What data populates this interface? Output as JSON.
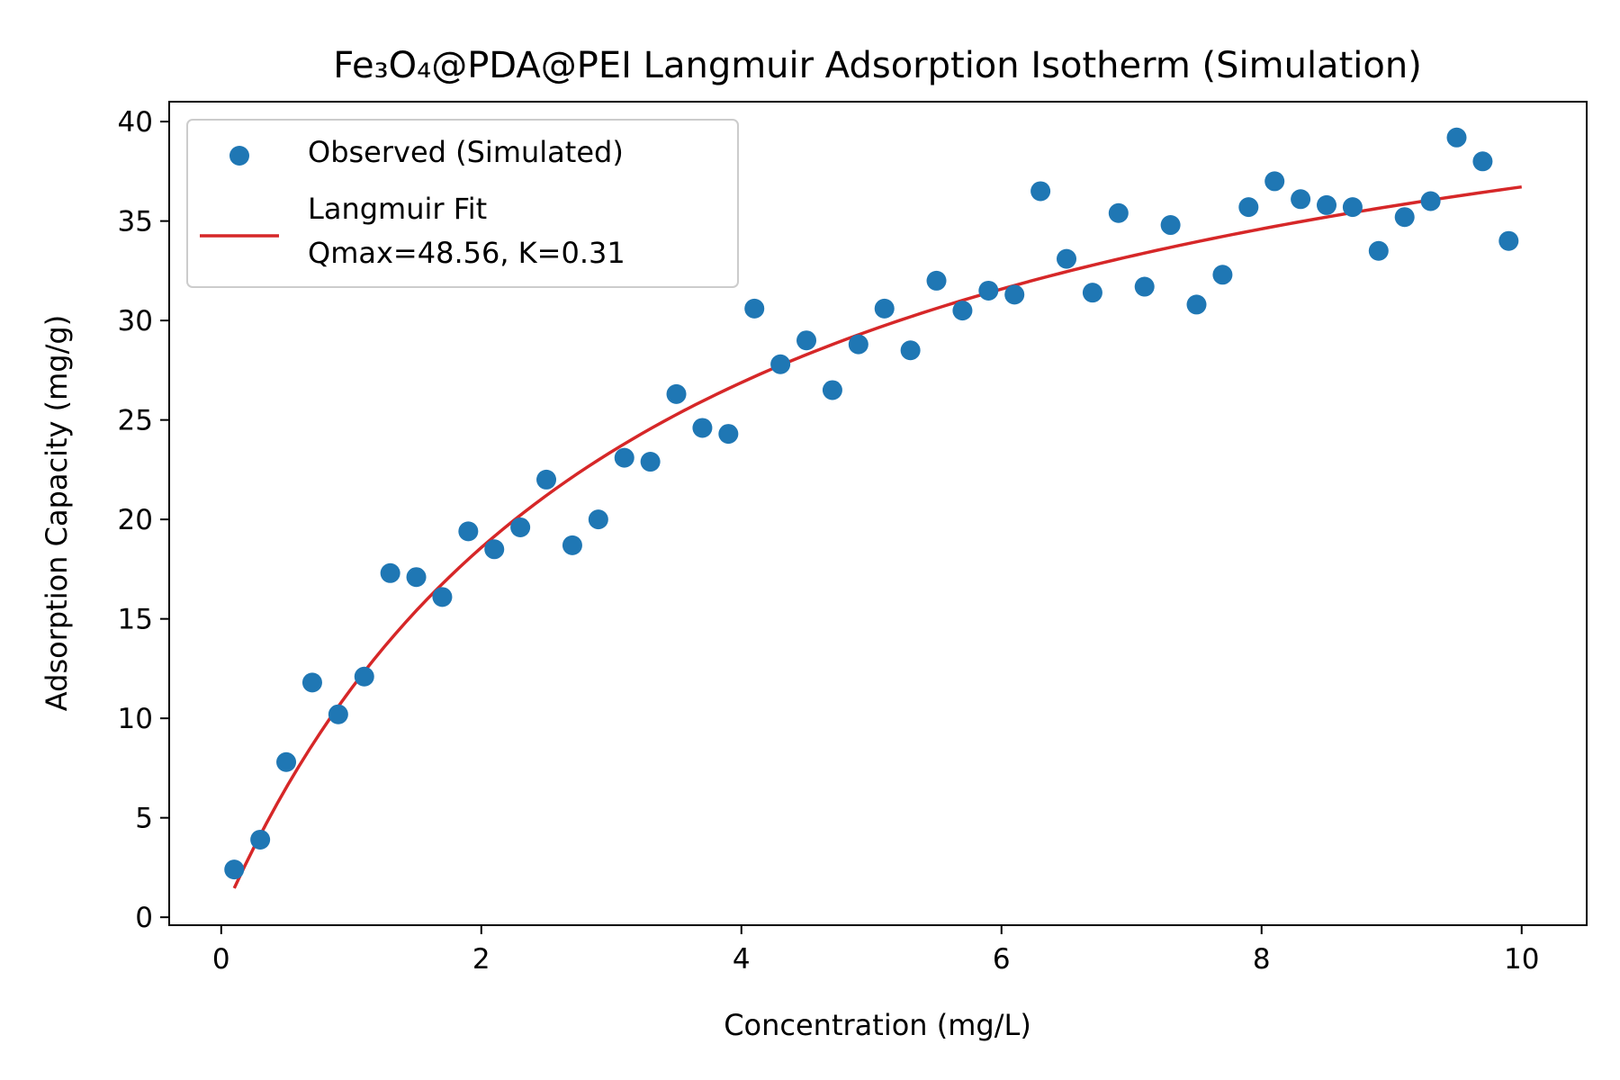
{
  "chart_data": {
    "type": "scatter",
    "title": "Fe₃O₄@PDA@PEI Langmuir Adsorption Isotherm (Simulation)",
    "xlabel": "Concentration (mg/L)",
    "ylabel": "Adsorption Capacity (mg/g)",
    "xlim": [
      -0.4,
      10.5
    ],
    "ylim": [
      -0.4,
      41.0
    ],
    "xticks": [
      0,
      2,
      4,
      6,
      8,
      10
    ],
    "yticks": [
      0,
      5,
      10,
      15,
      20,
      25,
      30,
      35,
      40
    ],
    "grid": false,
    "legend_position": "top-left",
    "colors": {
      "points": "#1f77b4",
      "fit": "#d62728"
    },
    "series": [
      {
        "name": "Observed (Simulated)",
        "kind": "scatter",
        "x": [
          0.1,
          0.3,
          0.5,
          0.7,
          0.9,
          1.1,
          1.3,
          1.5,
          1.7,
          1.9,
          2.1,
          2.3,
          2.5,
          2.7,
          2.9,
          3.1,
          3.3,
          3.5,
          3.7,
          3.9,
          4.1,
          4.3,
          4.5,
          4.7,
          4.9,
          5.1,
          5.3,
          5.5,
          5.7,
          5.9,
          6.1,
          6.3,
          6.5,
          6.7,
          6.9,
          7.1,
          7.3,
          7.5,
          7.7,
          7.9,
          8.1,
          8.3,
          8.5,
          8.7,
          8.9,
          9.1,
          9.3,
          9.5,
          9.7,
          9.9
        ],
        "y": [
          2.4,
          3.9,
          7.8,
          11.8,
          10.2,
          12.1,
          17.3,
          17.1,
          16.1,
          19.4,
          18.5,
          19.6,
          22.0,
          18.7,
          20.0,
          23.1,
          22.9,
          26.3,
          24.6,
          24.3,
          30.6,
          27.8,
          29.0,
          26.5,
          28.8,
          30.6,
          28.5,
          32.0,
          30.5,
          31.5,
          31.3,
          36.5,
          33.1,
          31.4,
          35.4,
          31.7,
          34.8,
          30.8,
          32.3,
          35.7,
          37.0,
          36.1,
          35.8,
          35.7,
          33.5,
          35.2,
          36.0,
          39.2,
          38.0,
          34.0
        ]
      },
      {
        "name": "Langmuir Fit",
        "name_line2": "Qmax=48.56, K=0.31",
        "kind": "line",
        "qmax": 48.56,
        "k": 0.31,
        "x_start": 0.1,
        "x_end": 10.0
      }
    ]
  }
}
